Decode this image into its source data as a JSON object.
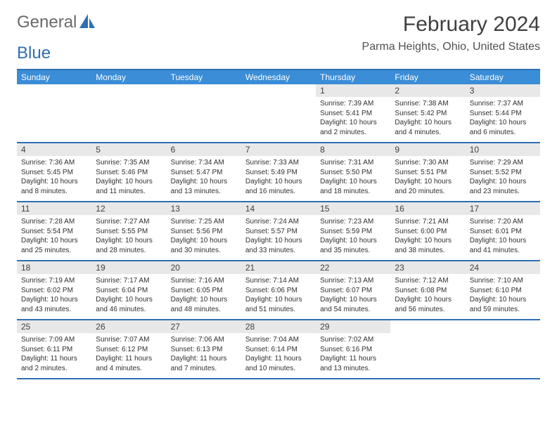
{
  "logo": {
    "general": "General",
    "blue": "Blue"
  },
  "title": "February 2024",
  "location": "Parma Heights, Ohio, United States",
  "colors": {
    "header_bg": "#3a8dd6",
    "header_border": "#2f6fb3",
    "daynum_bg": "#e8e8e8",
    "text": "#303030",
    "title_text": "#404040",
    "logo_gray": "#6a6a6a",
    "logo_blue": "#2f6fb3"
  },
  "weekdays": [
    "Sunday",
    "Monday",
    "Tuesday",
    "Wednesday",
    "Thursday",
    "Friday",
    "Saturday"
  ],
  "weeks": [
    [
      {
        "empty": true
      },
      {
        "empty": true
      },
      {
        "empty": true
      },
      {
        "empty": true
      },
      {
        "num": "1",
        "sunrise": "Sunrise: 7:39 AM",
        "sunset": "Sunset: 5:41 PM",
        "daylight1": "Daylight: 10 hours",
        "daylight2": "and 2 minutes."
      },
      {
        "num": "2",
        "sunrise": "Sunrise: 7:38 AM",
        "sunset": "Sunset: 5:42 PM",
        "daylight1": "Daylight: 10 hours",
        "daylight2": "and 4 minutes."
      },
      {
        "num": "3",
        "sunrise": "Sunrise: 7:37 AM",
        "sunset": "Sunset: 5:44 PM",
        "daylight1": "Daylight: 10 hours",
        "daylight2": "and 6 minutes."
      }
    ],
    [
      {
        "num": "4",
        "sunrise": "Sunrise: 7:36 AM",
        "sunset": "Sunset: 5:45 PM",
        "daylight1": "Daylight: 10 hours",
        "daylight2": "and 8 minutes."
      },
      {
        "num": "5",
        "sunrise": "Sunrise: 7:35 AM",
        "sunset": "Sunset: 5:46 PM",
        "daylight1": "Daylight: 10 hours",
        "daylight2": "and 11 minutes."
      },
      {
        "num": "6",
        "sunrise": "Sunrise: 7:34 AM",
        "sunset": "Sunset: 5:47 PM",
        "daylight1": "Daylight: 10 hours",
        "daylight2": "and 13 minutes."
      },
      {
        "num": "7",
        "sunrise": "Sunrise: 7:33 AM",
        "sunset": "Sunset: 5:49 PM",
        "daylight1": "Daylight: 10 hours",
        "daylight2": "and 16 minutes."
      },
      {
        "num": "8",
        "sunrise": "Sunrise: 7:31 AM",
        "sunset": "Sunset: 5:50 PM",
        "daylight1": "Daylight: 10 hours",
        "daylight2": "and 18 minutes."
      },
      {
        "num": "9",
        "sunrise": "Sunrise: 7:30 AM",
        "sunset": "Sunset: 5:51 PM",
        "daylight1": "Daylight: 10 hours",
        "daylight2": "and 20 minutes."
      },
      {
        "num": "10",
        "sunrise": "Sunrise: 7:29 AM",
        "sunset": "Sunset: 5:52 PM",
        "daylight1": "Daylight: 10 hours",
        "daylight2": "and 23 minutes."
      }
    ],
    [
      {
        "num": "11",
        "sunrise": "Sunrise: 7:28 AM",
        "sunset": "Sunset: 5:54 PM",
        "daylight1": "Daylight: 10 hours",
        "daylight2": "and 25 minutes."
      },
      {
        "num": "12",
        "sunrise": "Sunrise: 7:27 AM",
        "sunset": "Sunset: 5:55 PM",
        "daylight1": "Daylight: 10 hours",
        "daylight2": "and 28 minutes."
      },
      {
        "num": "13",
        "sunrise": "Sunrise: 7:25 AM",
        "sunset": "Sunset: 5:56 PM",
        "daylight1": "Daylight: 10 hours",
        "daylight2": "and 30 minutes."
      },
      {
        "num": "14",
        "sunrise": "Sunrise: 7:24 AM",
        "sunset": "Sunset: 5:57 PM",
        "daylight1": "Daylight: 10 hours",
        "daylight2": "and 33 minutes."
      },
      {
        "num": "15",
        "sunrise": "Sunrise: 7:23 AM",
        "sunset": "Sunset: 5:59 PM",
        "daylight1": "Daylight: 10 hours",
        "daylight2": "and 35 minutes."
      },
      {
        "num": "16",
        "sunrise": "Sunrise: 7:21 AM",
        "sunset": "Sunset: 6:00 PM",
        "daylight1": "Daylight: 10 hours",
        "daylight2": "and 38 minutes."
      },
      {
        "num": "17",
        "sunrise": "Sunrise: 7:20 AM",
        "sunset": "Sunset: 6:01 PM",
        "daylight1": "Daylight: 10 hours",
        "daylight2": "and 41 minutes."
      }
    ],
    [
      {
        "num": "18",
        "sunrise": "Sunrise: 7:19 AM",
        "sunset": "Sunset: 6:02 PM",
        "daylight1": "Daylight: 10 hours",
        "daylight2": "and 43 minutes."
      },
      {
        "num": "19",
        "sunrise": "Sunrise: 7:17 AM",
        "sunset": "Sunset: 6:04 PM",
        "daylight1": "Daylight: 10 hours",
        "daylight2": "and 46 minutes."
      },
      {
        "num": "20",
        "sunrise": "Sunrise: 7:16 AM",
        "sunset": "Sunset: 6:05 PM",
        "daylight1": "Daylight: 10 hours",
        "daylight2": "and 48 minutes."
      },
      {
        "num": "21",
        "sunrise": "Sunrise: 7:14 AM",
        "sunset": "Sunset: 6:06 PM",
        "daylight1": "Daylight: 10 hours",
        "daylight2": "and 51 minutes."
      },
      {
        "num": "22",
        "sunrise": "Sunrise: 7:13 AM",
        "sunset": "Sunset: 6:07 PM",
        "daylight1": "Daylight: 10 hours",
        "daylight2": "and 54 minutes."
      },
      {
        "num": "23",
        "sunrise": "Sunrise: 7:12 AM",
        "sunset": "Sunset: 6:08 PM",
        "daylight1": "Daylight: 10 hours",
        "daylight2": "and 56 minutes."
      },
      {
        "num": "24",
        "sunrise": "Sunrise: 7:10 AM",
        "sunset": "Sunset: 6:10 PM",
        "daylight1": "Daylight: 10 hours",
        "daylight2": "and 59 minutes."
      }
    ],
    [
      {
        "num": "25",
        "sunrise": "Sunrise: 7:09 AM",
        "sunset": "Sunset: 6:11 PM",
        "daylight1": "Daylight: 11 hours",
        "daylight2": "and 2 minutes."
      },
      {
        "num": "26",
        "sunrise": "Sunrise: 7:07 AM",
        "sunset": "Sunset: 6:12 PM",
        "daylight1": "Daylight: 11 hours",
        "daylight2": "and 4 minutes."
      },
      {
        "num": "27",
        "sunrise": "Sunrise: 7:06 AM",
        "sunset": "Sunset: 6:13 PM",
        "daylight1": "Daylight: 11 hours",
        "daylight2": "and 7 minutes."
      },
      {
        "num": "28",
        "sunrise": "Sunrise: 7:04 AM",
        "sunset": "Sunset: 6:14 PM",
        "daylight1": "Daylight: 11 hours",
        "daylight2": "and 10 minutes."
      },
      {
        "num": "29",
        "sunrise": "Sunrise: 7:02 AM",
        "sunset": "Sunset: 6:16 PM",
        "daylight1": "Daylight: 11 hours",
        "daylight2": "and 13 minutes."
      },
      {
        "empty": true
      },
      {
        "empty": true
      }
    ]
  ]
}
